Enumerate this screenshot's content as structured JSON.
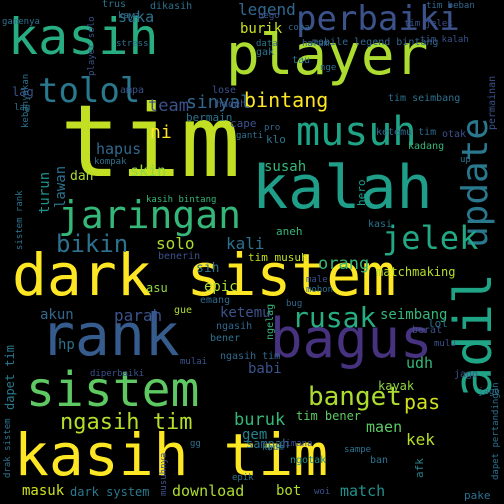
{
  "wordcloud": {
    "words": [
      {
        "text": "tim",
        "color": "#c2df23"
      },
      {
        "text": "dark sistem",
        "color": "#fde725"
      },
      {
        "text": "kasih tim",
        "color": "#fde725"
      },
      {
        "text": "player",
        "color": "#addc30"
      },
      {
        "text": "kasih",
        "color": "#27ad81"
      },
      {
        "text": "bagus",
        "color": "#46327e"
      },
      {
        "text": "rank",
        "color": "#365c8d"
      },
      {
        "text": "kalah",
        "color": "#1f9e89"
      },
      {
        "text": "musuh",
        "color": "#20a486"
      },
      {
        "text": "sistem",
        "color": "#5ec962"
      },
      {
        "text": "adil",
        "color": "#20a486"
      },
      {
        "text": "perbaiki",
        "color": "#3b528b"
      },
      {
        "text": "jaringan",
        "color": "#35b779"
      },
      {
        "text": "tolol",
        "color": "#2a788e"
      },
      {
        "text": "update",
        "color": "#2a788e"
      },
      {
        "text": "jelek",
        "color": "#22a884"
      },
      {
        "text": "rusak",
        "color": "#26ad81"
      },
      {
        "text": "banget",
        "color": "#addc30"
      },
      {
        "text": "bikin",
        "color": "#2c728e"
      },
      {
        "text": "ngasih tim",
        "color": "#b5de2b"
      },
      {
        "text": "bintang",
        "color": "#fde725"
      },
      {
        "text": "sinyal",
        "color": "#31688e"
      },
      {
        "text": "legend",
        "color": "#31688e"
      },
      {
        "text": "suka",
        "color": "#2c728e"
      },
      {
        "text": "team",
        "color": "#3b528b"
      },
      {
        "text": "burik",
        "color": "#c8e020"
      },
      {
        "text": "buruk",
        "color": "#35b779"
      },
      {
        "text": "kali",
        "color": "#2c728e"
      },
      {
        "text": "orang",
        "color": "#35b779"
      },
      {
        "text": "solo",
        "color": "#addc30"
      },
      {
        "text": "hapus",
        "color": "#31688e"
      },
      {
        "text": "skin",
        "color": "#8fd744"
      },
      {
        "text": "parah",
        "color": "#3b528b"
      },
      {
        "text": "pas",
        "color": "#d0e11c"
      },
      {
        "text": "maen",
        "color": "#5ec962"
      },
      {
        "text": "kek",
        "color": "#b5de2b"
      },
      {
        "text": "gem",
        "color": "#26828e"
      },
      {
        "text": "match",
        "color": "#21918c"
      },
      {
        "text": "download",
        "color": "#addc30"
      },
      {
        "text": "masuk",
        "color": "#d0e11c"
      },
      {
        "text": "akun",
        "color": "#31688e"
      },
      {
        "text": "seimbang",
        "color": "#35b779"
      },
      {
        "text": "matchmaking",
        "color": "#b5de2b"
      },
      {
        "text": "susah",
        "color": "#35b779"
      },
      {
        "text": "ketemu",
        "color": "#3b528b"
      },
      {
        "text": "tim musuh",
        "color": "#c2df23"
      },
      {
        "text": "epic",
        "color": "#addc30"
      },
      {
        "text": "babi",
        "color": "#3b528b"
      },
      {
        "text": "lawan",
        "color": "#2c728e"
      },
      {
        "text": "turun",
        "color": "#21918c"
      },
      {
        "text": "dah",
        "color": "#addc30"
      },
      {
        "text": "ni",
        "color": "#fde725"
      },
      {
        "text": "sih",
        "color": "#2c728e"
      },
      {
        "text": "asu",
        "color": "#8fd744"
      },
      {
        "text": "bot",
        "color": "#addc30"
      },
      {
        "text": "udh",
        "color": "#35b779"
      },
      {
        "text": "hp",
        "color": "#2c728e"
      },
      {
        "text": "dapet tim",
        "color": "#2a788e"
      },
      {
        "text": "tim bener",
        "color": "#5ec962"
      },
      {
        "text": "kayak",
        "color": "#8fd744"
      },
      {
        "text": "sampah",
        "color": "#2c728e"
      },
      {
        "text": "dark system",
        "color": "#2a788e"
      },
      {
        "text": "bermain",
        "color": "#2c728e"
      },
      {
        "text": "mobile legend bintang",
        "color": "#31688e"
      },
      {
        "text": "tim seimbang",
        "color": "#2c728e"
      },
      {
        "text": "ketemu tim",
        "color": "#31688e"
      },
      {
        "text": "hero",
        "color": "#1f9e89"
      },
      {
        "text": "klo",
        "color": "#2c728e"
      },
      {
        "text": "kadang",
        "color": "#35b779"
      },
      {
        "text": "aneh",
        "color": "#35b779"
      },
      {
        "text": "kasi",
        "color": "#2c728e"
      },
      {
        "text": "bener",
        "color": "#2c728e"
      },
      {
        "text": "emang",
        "color": "#31688e"
      },
      {
        "text": "ngasih",
        "color": "#31688e"
      },
      {
        "text": "berat",
        "color": "#3b528b"
      },
      {
        "text": "lol",
        "color": "#2c728e"
      },
      {
        "text": "ngotak",
        "color": "#21918c"
      },
      {
        "text": "ban",
        "color": "#2c728e"
      },
      {
        "text": "pake",
        "color": "#2c728e"
      },
      {
        "text": "afk",
        "color": "#26828e"
      },
      {
        "text": "cape",
        "color": "#3b528b"
      },
      {
        "text": "hadeh",
        "color": "#3b528b"
      },
      {
        "text": "ampa",
        "color": "#3b528b"
      },
      {
        "text": "benerin",
        "color": "#3b528b"
      },
      {
        "text": "lose",
        "color": "#3b528b"
      },
      {
        "text": "trus",
        "color": "#2c728e"
      },
      {
        "text": "dikasih",
        "color": "#2c728e"
      },
      {
        "text": "kaya",
        "color": "#2c728e"
      },
      {
        "text": "lag",
        "color": "#3b528b"
      },
      {
        "text": "haram",
        "color": "#31688e"
      },
      {
        "text": "tau",
        "color": "#2c728e"
      },
      {
        "text": "gak",
        "color": "#2c728e"
      },
      {
        "text": "data",
        "color": "#2c728e"
      },
      {
        "text": "stress",
        "color": "#2c728e"
      },
      {
        "text": "tim beban",
        "color": "#31688e"
      },
      {
        "text": "permainan",
        "color": "#3b528b"
      },
      {
        "text": "otak",
        "color": "#3b528b"
      },
      {
        "text": "player solo",
        "color": "#3b528b"
      },
      {
        "text": "ngelag",
        "color": "#35b779"
      },
      {
        "text": "mohon",
        "color": "#2c728e"
      },
      {
        "text": "gue",
        "color": "#addc30"
      },
      {
        "text": "ngasih tim",
        "color": "#31688e"
      },
      {
        "text": "dapet pertandingan",
        "color": "#2c728e"
      },
      {
        "text": "musuhnya",
        "color": "#3b528b"
      },
      {
        "text": "gimana",
        "color": "#3b528b"
      },
      {
        "text": "sampe",
        "color": "#2c728e"
      },
      {
        "text": "epik",
        "color": "#2c728e"
      },
      {
        "text": "woi",
        "color": "#3b528b"
      },
      {
        "text": "jago",
        "color": "#3b528b"
      },
      {
        "text": "diperbaiki",
        "color": "#3b528b"
      },
      {
        "text": "kaum",
        "color": "#2c728e"
      },
      {
        "text": "gamenya",
        "color": "#2c728e"
      },
      {
        "text": "male",
        "color": "#3b528b"
      },
      {
        "text": "pro",
        "color": "#31688e"
      },
      {
        "text": "kebanyakan",
        "color": "#2c728e"
      },
      {
        "text": "kasih bintang",
        "color": "#35b779"
      },
      {
        "text": "mulu",
        "color": "#3b528b"
      },
      {
        "text": "drak sistem",
        "color": "#2c728e"
      },
      {
        "text": "sistem rank",
        "color": "#2c728e"
      },
      {
        "text": "tim jelek",
        "color": "#3b528b"
      },
      {
        "text": "tim kalah",
        "color": "#3b528b"
      },
      {
        "text": "bego",
        "color": "#3b528b"
      },
      {
        "text": "coba",
        "color": "#31688e"
      },
      {
        "text": "ganti",
        "color": "#2c728e"
      },
      {
        "text": "mulai",
        "color": "#3b528b"
      },
      {
        "text": "kompak",
        "color": "#2c728e"
      },
      {
        "text": "bug",
        "color": "#31688e"
      },
      {
        "text": "gg",
        "color": "#2c728e"
      },
      {
        "text": "nge",
        "color": "#2c728e"
      },
      {
        "text": "lag",
        "color": "#2c728e"
      },
      {
        "text": "up",
        "color": "#2c728e"
      },
      {
        "text": "jago",
        "color": "#2c728e"
      }
    ]
  }
}
